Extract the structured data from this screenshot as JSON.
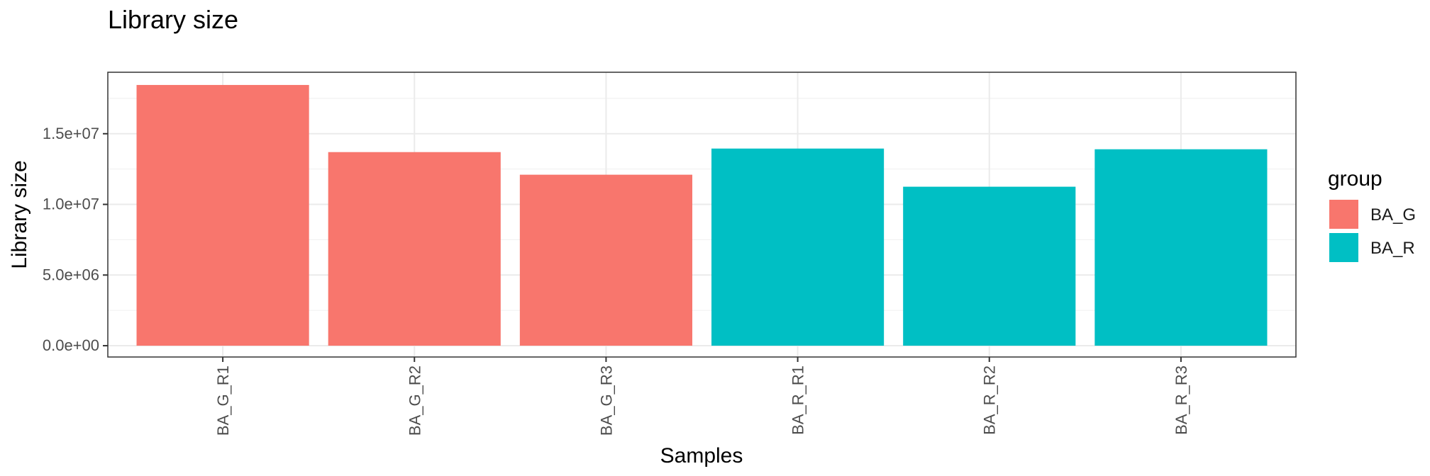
{
  "chart_data": {
    "type": "bar",
    "title": "Library size",
    "xlabel": "Samples",
    "ylabel": "Library size",
    "categories": [
      "BA_G_R1",
      "BA_G_R2",
      "BA_G_R3",
      "BA_R_R1",
      "BA_R_R2",
      "BA_R_R3"
    ],
    "values": [
      18450000,
      13700000,
      12100000,
      13950000,
      11250000,
      13900000
    ],
    "groups": [
      "BA_G",
      "BA_G",
      "BA_G",
      "BA_R",
      "BA_R",
      "BA_R"
    ],
    "ylim": [
      -800000,
      19350000
    ],
    "yticks": [
      0,
      5000000,
      10000000,
      15000000
    ],
    "ytick_labels": [
      "0.0e+00",
      "5.0e+06",
      "1.0e+07",
      "1.5e+07"
    ],
    "grid": true,
    "legend": {
      "title": "group",
      "placement": "right",
      "entries": [
        {
          "label": "BA_G",
          "color": "#F8766D"
        },
        {
          "label": "BA_R",
          "color": "#00BFC4"
        }
      ]
    }
  }
}
